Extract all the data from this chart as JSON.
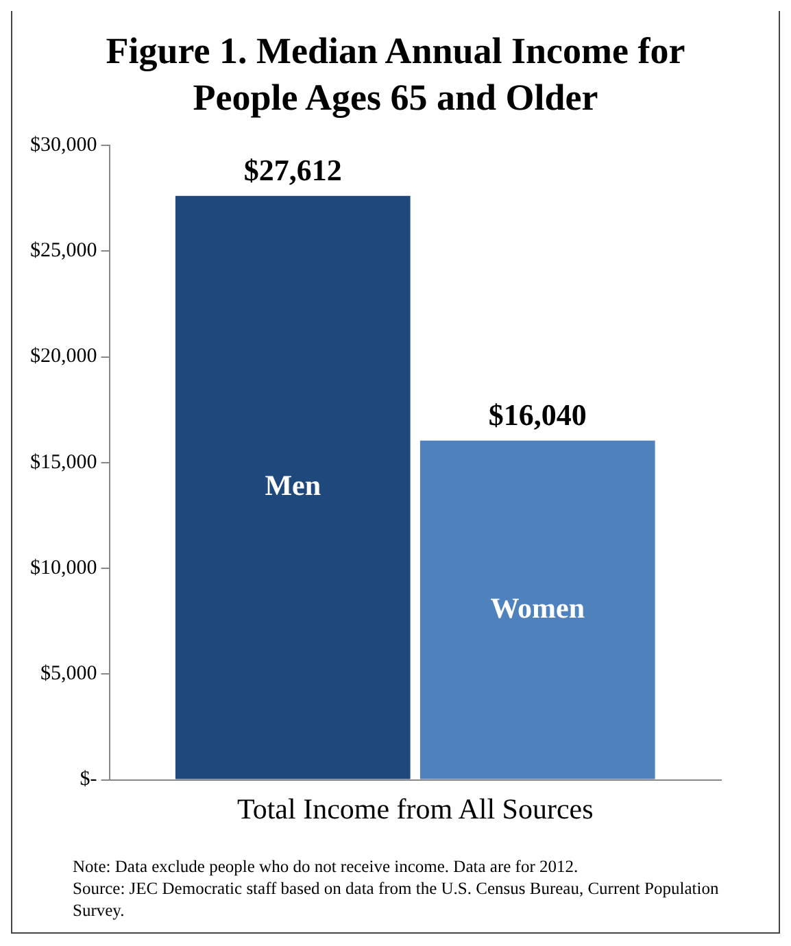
{
  "chart_data": {
    "type": "bar",
    "title": "Figure 1. Median Annual Income for People Ages 65 and Older",
    "categories": [
      "Total Income from All Sources"
    ],
    "series": [
      {
        "name": "Men",
        "color": "#1f497d",
        "values": [
          27612
        ],
        "value_labels": [
          "$27,612"
        ]
      },
      {
        "name": "Women",
        "color": "#4f81bd",
        "values": [
          16040
        ],
        "value_labels": [
          "$16,040"
        ]
      }
    ],
    "ylim": [
      0,
      30000
    ],
    "yticks": [
      {
        "value": 0,
        "label": "$-"
      },
      {
        "value": 5000,
        "label": "$5,000"
      },
      {
        "value": 10000,
        "label": "$10,000"
      },
      {
        "value": 15000,
        "label": "$15,000"
      },
      {
        "value": 20000,
        "label": "$20,000"
      },
      {
        "value": 25000,
        "label": "$25,000"
      },
      {
        "value": 30000,
        "label": "$30,000"
      }
    ],
    "grid": false,
    "legend": false,
    "annotations": [
      "Note: Data exclude people who do not receive income. Data are for 2012.",
      "Source: JEC Democratic staff based on data from the U.S. Census Bureau, Current Population Survey."
    ]
  }
}
